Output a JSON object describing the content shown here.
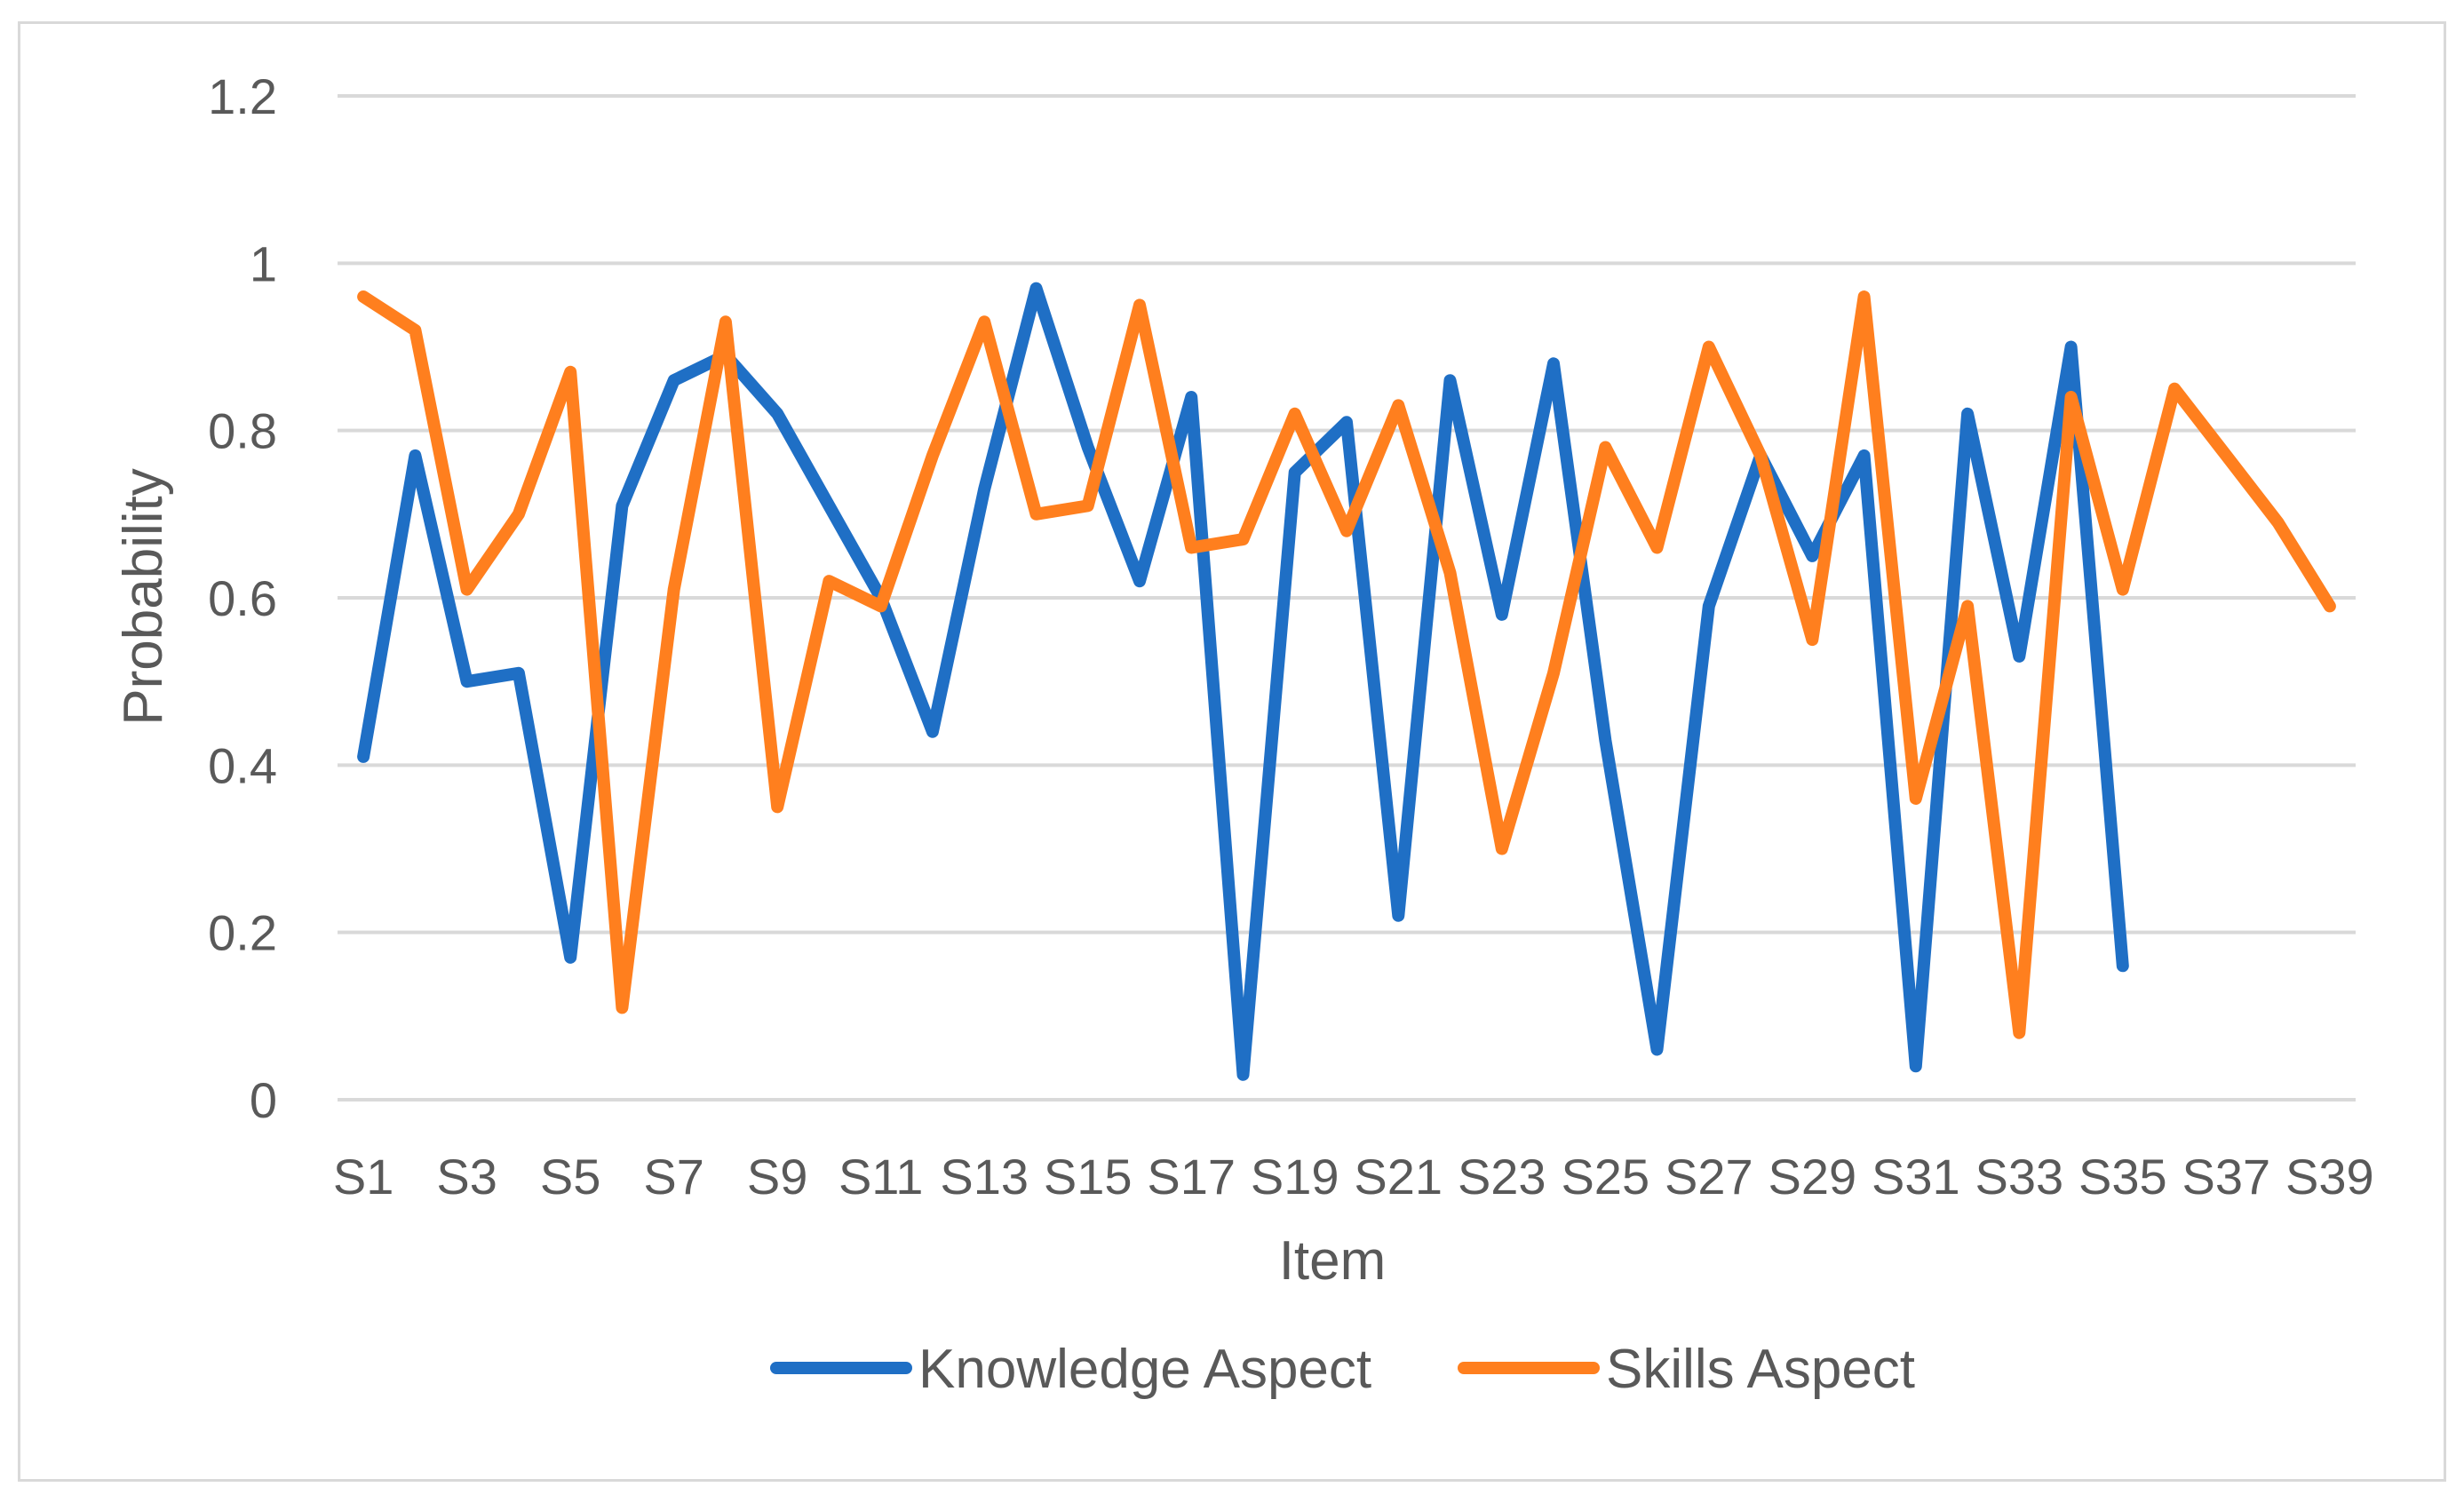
{
  "chart_data": {
    "type": "line",
    "title": "",
    "xlabel": "Item",
    "ylabel": "Probability",
    "ylim": [
      0,
      1.2
    ],
    "yticks": [
      "0",
      "0.2",
      "0.4",
      "0.6",
      "0.8",
      "1",
      "1.2"
    ],
    "categories": [
      "S1",
      "S2",
      "S3",
      "S4",
      "S5",
      "S6",
      "S7",
      "S8",
      "S9",
      "S10",
      "S11",
      "S12",
      "S13",
      "S14",
      "S15",
      "S16",
      "S17",
      "S18",
      "S19",
      "S20",
      "S21",
      "S22",
      "S23",
      "S24",
      "S25",
      "S26",
      "S27",
      "S28",
      "S29",
      "S30",
      "S31",
      "S32",
      "S33",
      "S34",
      "S35",
      "S36",
      "S37",
      "S38",
      "S39"
    ],
    "xtick_labels": [
      "S1",
      "S3",
      "S5",
      "S7",
      "S9",
      "S11",
      "S13",
      "S15",
      "S17",
      "S19",
      "S21",
      "S23",
      "S25",
      "S27",
      "S29",
      "S31",
      "S33",
      "S35",
      "S37",
      "S39"
    ],
    "grid": true,
    "legend_position": "bottom",
    "series": [
      {
        "name": "Knowledge Aspect",
        "color": "#1f6fc5",
        "values": [
          0.41,
          0.77,
          0.5,
          0.51,
          0.17,
          0.71,
          0.86,
          0.89,
          0.82,
          0.71,
          0.6,
          0.44,
          0.73,
          0.97,
          0.78,
          0.62,
          0.84,
          0.03,
          0.75,
          0.81,
          0.22,
          0.86,
          0.58,
          0.88,
          0.43,
          0.06,
          0.59,
          0.77,
          0.65,
          0.77,
          0.04,
          0.82,
          0.53,
          0.9,
          0.16,
          null,
          null,
          null,
          null
        ]
      },
      {
        "name": "Skills Aspect",
        "color": "#ff7f1e",
        "values": [
          0.96,
          0.92,
          0.61,
          0.7,
          0.87,
          0.11,
          0.61,
          0.93,
          0.35,
          0.62,
          0.59,
          0.77,
          0.93,
          0.7,
          0.71,
          0.95,
          0.66,
          0.67,
          0.82,
          0.68,
          0.83,
          0.63,
          0.3,
          0.51,
          0.78,
          0.66,
          0.9,
          0.77,
          0.55,
          0.96,
          0.36,
          0.59,
          0.08,
          0.84,
          0.61,
          0.85,
          0.77,
          0.69,
          0.59
        ]
      }
    ]
  }
}
